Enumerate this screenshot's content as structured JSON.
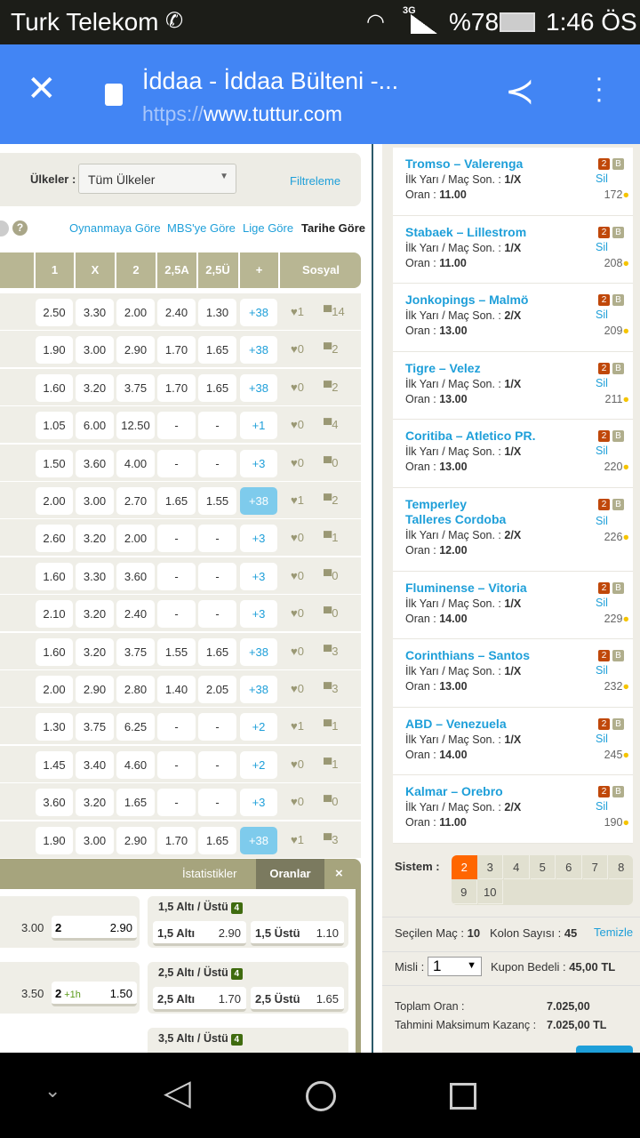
{
  "status": {
    "carrier": "Turk Telekom",
    "network": "3G",
    "battery": "%78",
    "time": "1:46 ÖS"
  },
  "browser": {
    "title": "İddaa - İddaa Bülteni -...",
    "url_scheme": "https://",
    "url_host": "www.tuttur.com"
  },
  "filter": {
    "countries_label": "Ülkeler :",
    "countries_value": "Tüm Ülkeler",
    "filter_link": "Filtreleme"
  },
  "sort": {
    "options": [
      "Oynanmaya Göre",
      "MBS'ye Göre",
      "Lige Göre",
      "Tarihe Göre"
    ],
    "active": "Tarihe Göre"
  },
  "table": {
    "headers": [
      "1",
      "X",
      "2",
      "2,5A",
      "2,5Ü",
      "+",
      "Sosyal"
    ],
    "rows": [
      [
        "2.50",
        "3.30",
        "2.00",
        "2.40",
        "1.30",
        "+38",
        "1",
        "14"
      ],
      [
        "1.90",
        "3.00",
        "2.90",
        "1.70",
        "1.65",
        "+38",
        "0",
        "2"
      ],
      [
        "1.60",
        "3.20",
        "3.75",
        "1.70",
        "1.65",
        "+38",
        "0",
        "2"
      ],
      [
        "1.05",
        "6.00",
        "12.50",
        "-",
        "-",
        "+1",
        "0",
        "4"
      ],
      [
        "1.50",
        "3.60",
        "4.00",
        "-",
        "-",
        "+3",
        "0",
        "0"
      ],
      [
        "2.00",
        "3.00",
        "2.70",
        "1.65",
        "1.55",
        "+38",
        "1",
        "2"
      ],
      [
        "2.60",
        "3.20",
        "2.00",
        "-",
        "-",
        "+3",
        "0",
        "1"
      ],
      [
        "1.60",
        "3.30",
        "3.60",
        "-",
        "-",
        "+3",
        "0",
        "0"
      ],
      [
        "2.10",
        "3.20",
        "2.40",
        "-",
        "-",
        "+3",
        "0",
        "0"
      ],
      [
        "1.60",
        "3.20",
        "3.75",
        "1.55",
        "1.65",
        "+38",
        "0",
        "3"
      ],
      [
        "2.00",
        "2.90",
        "2.80",
        "1.40",
        "2.05",
        "+38",
        "0",
        "3"
      ],
      [
        "1.30",
        "3.75",
        "6.25",
        "-",
        "-",
        "+2",
        "1",
        "1"
      ],
      [
        "1.45",
        "3.40",
        "4.60",
        "-",
        "-",
        "+2",
        "0",
        "1"
      ],
      [
        "3.60",
        "3.20",
        "1.65",
        "-",
        "-",
        "+3",
        "0",
        "0"
      ],
      [
        "1.90",
        "3.00",
        "2.90",
        "1.70",
        "1.65",
        "+38",
        "1",
        "3"
      ]
    ],
    "highlighted_rows": [
      5,
      14
    ]
  },
  "detail": {
    "tabs": [
      "İstatistikler",
      "Oranlar"
    ],
    "active_tab": "Oranlar",
    "close": "×",
    "left_odds": [
      {
        "v1": "3.00",
        "l2": "2",
        "v2": "2.90"
      },
      {
        "v1": "3.50",
        "l2": "2",
        "l2_extra": "+1h",
        "v2": "1.50"
      }
    ],
    "markets": [
      {
        "title": "1,5 Altı / Üstü",
        "badge": "4",
        "a_label": "1,5 Altı",
        "a_val": "2.90",
        "b_label": "1,5 Üstü",
        "b_val": "1.10"
      },
      {
        "title": "2,5 Altı / Üstü",
        "badge": "4",
        "a_label": "2,5 Altı",
        "a_val": "1.70",
        "b_label": "2,5 Üstü",
        "b_val": "1.65"
      },
      {
        "title": "3,5 Altı / Üstü",
        "badge": "4"
      }
    ]
  },
  "coupon": {
    "bet_label": "İlk Yarı / Maç Son. :",
    "odds_label": "Oran :",
    "delete": "Sil",
    "badge_a": "2",
    "badge_b": "B",
    "items": [
      {
        "name": "Tromso – Valerenga",
        "pick": "1/X",
        "odds": "11.00",
        "count": "172"
      },
      {
        "name": "Stabaek – Lillestrom",
        "pick": "1/X",
        "odds": "11.00",
        "count": "208"
      },
      {
        "name": "Jonkopings – Malmö",
        "pick": "2/X",
        "odds": "13.00",
        "count": "209"
      },
      {
        "name": "Tigre – Velez",
        "pick": "1/X",
        "odds": "13.00",
        "count": "211"
      },
      {
        "name": "Coritiba – Atletico PR.",
        "pick": "1/X",
        "odds": "13.00",
        "count": "220"
      },
      {
        "name": "Temperley\nTalleres Cordoba",
        "pick": "2/X",
        "odds": "12.00",
        "count": "226"
      },
      {
        "name": "Fluminense – Vitoria",
        "pick": "1/X",
        "odds": "14.00",
        "count": "229"
      },
      {
        "name": "Corinthians – Santos",
        "pick": "1/X",
        "odds": "13.00",
        "count": "232"
      },
      {
        "name": "ABD – Venezuela",
        "pick": "1/X",
        "odds": "14.00",
        "count": "245"
      },
      {
        "name": "Kalmar – Orebro",
        "pick": "2/X",
        "odds": "11.00",
        "count": "190"
      }
    ],
    "system_label": "Sistem :",
    "system_options": [
      "2",
      "3",
      "4",
      "5",
      "6",
      "7",
      "8",
      "9",
      "10"
    ],
    "system_selected": "2",
    "selected_label": "Seçilen Maç :",
    "selected_value": "10",
    "columns_label": "Kolon Sayısı :",
    "columns_value": "45",
    "clear": "Temizle",
    "multiplier_label": "Misli :",
    "multiplier_value": "1",
    "cost_label": "Kupon Bedeli :",
    "cost_value": "45,00 TL",
    "total_odds_label": "Toplam Oran :",
    "total_odds_value": "7.025,00",
    "max_win_label": "Tahmini Maksimum Kazanç :",
    "max_win_value": "7.025,00 TL"
  },
  "colors": {
    "chrome": "#4285f4",
    "accent": "#1e9fd9",
    "header": "#b8b693",
    "system_selected": "#ff6600"
  }
}
